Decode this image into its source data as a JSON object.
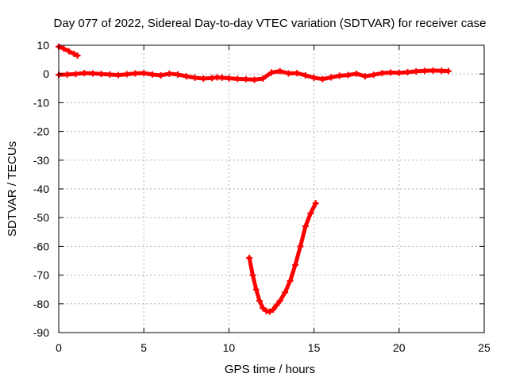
{
  "chart_data": {
    "type": "scatter",
    "title": "Day 077 of 2022, Sidereal Day-to-day VTEC variation (SDTVAR) for receiver case",
    "xlabel": "GPS time / hours",
    "ylabel": "SDTVAR / TECUs",
    "xlim": [
      0,
      25
    ],
    "ylim": [
      -90,
      10
    ],
    "xticks": [
      0,
      5,
      10,
      15,
      20,
      25
    ],
    "yticks": [
      10,
      0,
      -10,
      -20,
      -30,
      -40,
      -50,
      -60,
      -70,
      -80,
      -90
    ],
    "grid": true,
    "legend": "none",
    "series": [
      {
        "name": "SDTVAR early segment",
        "color": "#ff0000",
        "x": [
          0.0,
          0.3,
          0.6,
          0.9,
          1.1
        ],
        "y": [
          9.5,
          8.8,
          7.9,
          7.0,
          6.4
        ]
      },
      {
        "name": "SDTVAR main",
        "color": "#ff0000",
        "x": [
          0.0,
          0.5,
          1.0,
          1.5,
          2.0,
          2.5,
          3.0,
          3.5,
          4.0,
          4.5,
          5.0,
          5.5,
          6.0,
          6.5,
          7.0,
          7.5,
          8.0,
          8.5,
          9.0,
          9.3,
          9.6,
          10.0,
          10.5,
          11.0,
          11.5,
          12.0,
          12.5,
          13.0,
          13.5,
          14.0,
          14.5,
          15.0,
          15.5,
          16.0,
          16.5,
          17.0,
          17.5,
          18.0,
          18.5,
          19.0,
          19.5,
          20.0,
          20.5,
          21.0,
          21.5,
          22.0,
          22.5,
          22.9
        ],
        "y": [
          -0.3,
          -0.2,
          0.0,
          0.3,
          0.2,
          0.0,
          -0.2,
          -0.4,
          -0.1,
          0.2,
          0.3,
          -0.2,
          -0.5,
          0.1,
          -0.2,
          -0.8,
          -1.3,
          -1.6,
          -1.4,
          -1.2,
          -1.3,
          -1.5,
          -1.7,
          -1.8,
          -2.0,
          -1.6,
          0.5,
          1.0,
          0.2,
          0.3,
          -0.5,
          -1.3,
          -1.8,
          -1.2,
          -0.6,
          -0.4,
          0.1,
          -0.8,
          -0.3,
          0.3,
          0.5,
          0.4,
          0.6,
          0.9,
          1.1,
          1.2,
          1.1,
          1.0
        ]
      },
      {
        "name": "SDTVAR arc",
        "color": "#ff0000",
        "x": [
          11.2,
          11.4,
          11.6,
          11.8,
          12.0,
          12.2,
          12.4,
          12.6,
          12.8,
          13.0,
          13.3,
          13.6,
          13.9,
          14.2,
          14.5,
          14.8,
          15.1
        ],
        "y": [
          -64,
          -70,
          -75,
          -79,
          -81.5,
          -82.5,
          -82.7,
          -82.0,
          -80.5,
          -79,
          -76,
          -72,
          -66.5,
          -60,
          -53,
          -48.5,
          -45
        ]
      }
    ]
  }
}
